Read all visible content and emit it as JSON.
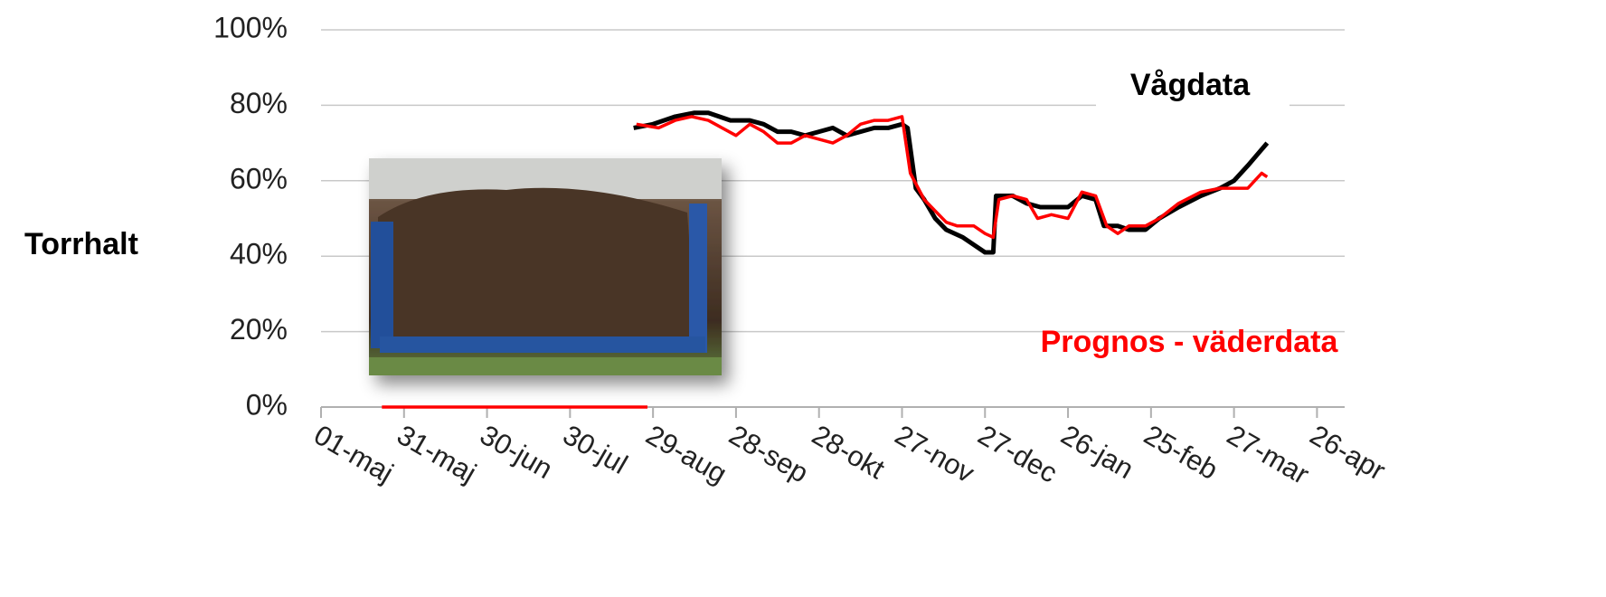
{
  "chart_data": {
    "type": "line",
    "y_label": "Torrhalt",
    "xlim": [
      0,
      370
    ],
    "xticks": [
      {
        "value": 0,
        "label": "01-maj"
      },
      {
        "value": 30,
        "label": "31-maj"
      },
      {
        "value": 60,
        "label": "30-jun"
      },
      {
        "value": 90,
        "label": "30-jul"
      },
      {
        "value": 120,
        "label": "29-aug"
      },
      {
        "value": 150,
        "label": "28-sep"
      },
      {
        "value": 180,
        "label": "28-okt"
      },
      {
        "value": 210,
        "label": "27-nov"
      },
      {
        "value": 240,
        "label": "27-dec"
      },
      {
        "value": 270,
        "label": "26-jan"
      },
      {
        "value": 300,
        "label": "25-feb"
      },
      {
        "value": 330,
        "label": "27-mar"
      },
      {
        "value": 360,
        "label": "26-apr"
      }
    ],
    "ylim": [
      0,
      100
    ],
    "yticks": [
      {
        "value": 0,
        "label": "0%"
      },
      {
        "value": 20,
        "label": "20%"
      },
      {
        "value": 40,
        "label": "40%"
      },
      {
        "value": 60,
        "label": "60%"
      },
      {
        "value": 80,
        "label": "80%"
      },
      {
        "value": 100,
        "label": "100%"
      }
    ],
    "grid": true,
    "series": [
      {
        "name": "Vågdata",
        "color": "#000000",
        "x": [
          113,
          120,
          128,
          135,
          140,
          148,
          155,
          160,
          165,
          170,
          175,
          180,
          185,
          190,
          195,
          200,
          205,
          210,
          212,
          215,
          218,
          222,
          226,
          232,
          236,
          240,
          243,
          244,
          250,
          255,
          260,
          265,
          270,
          275,
          280,
          283,
          288,
          292,
          298,
          303,
          310,
          318,
          325,
          330,
          335,
          342
        ],
        "values": [
          74,
          75,
          77,
          78,
          78,
          76,
          76,
          75,
          73,
          73,
          72,
          73,
          74,
          72,
          73,
          74,
          74,
          75,
          74,
          58,
          55,
          50,
          47,
          45,
          43,
          41,
          41,
          56,
          56,
          54,
          53,
          53,
          53,
          56,
          55,
          48,
          48,
          47,
          47,
          50,
          53,
          56,
          58,
          60,
          64,
          70
        ]
      },
      {
        "name": "Prognos - väderdata",
        "color": "#ff0000",
        "x": [
          22,
          118,
          118,
          114,
          122,
          128,
          134,
          140,
          145,
          150,
          155,
          160,
          165,
          170,
          175,
          180,
          185,
          190,
          195,
          200,
          205,
          210,
          213,
          218,
          222,
          226,
          230,
          236,
          240,
          243,
          245,
          250,
          255,
          259,
          264,
          270,
          275,
          280,
          284,
          288,
          292,
          298,
          303,
          310,
          318,
          325,
          330,
          335,
          340,
          342
        ],
        "values": [
          0,
          0,
          null,
          75,
          74,
          76,
          77,
          76,
          74,
          72,
          75,
          73,
          70,
          70,
          72,
          71,
          70,
          72,
          75,
          76,
          76,
          77,
          62,
          55,
          52,
          49,
          48,
          48,
          46,
          45,
          55,
          56,
          55,
          50,
          51,
          50,
          57,
          56,
          48,
          46,
          48,
          48,
          50,
          54,
          57,
          58,
          58,
          58,
          62,
          61
        ]
      }
    ]
  }
}
